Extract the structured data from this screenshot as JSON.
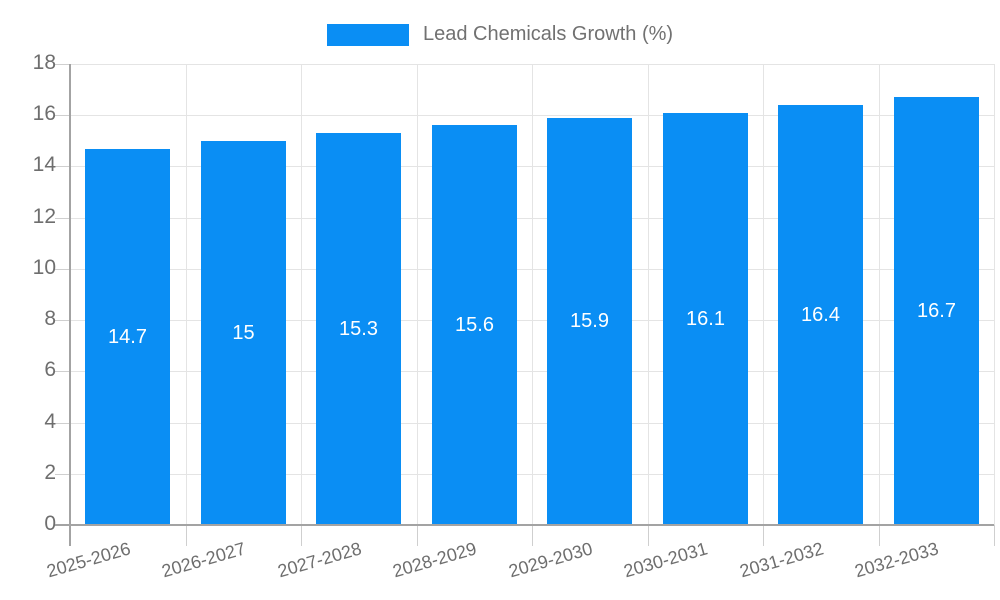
{
  "page": {
    "background": "#ffffff"
  },
  "legend": {
    "label": "Lead Chemicals Growth (%)",
    "swatch_color": "#0a8ef4"
  },
  "chart_data": {
    "type": "bar",
    "title": "",
    "xlabel": "",
    "ylabel": "",
    "categories": [
      "2025-2026",
      "2026-2027",
      "2027-2028",
      "2028-2029",
      "2029-2030",
      "2030-2031",
      "2031-2032",
      "2032-2033"
    ],
    "series": [
      {
        "name": "Lead Chemicals Growth (%)",
        "values": [
          14.7,
          15,
          15.3,
          15.6,
          15.9,
          16.1,
          16.4,
          16.7
        ],
        "color": "#0a8ef4"
      }
    ],
    "bar_value_labels": [
      "14.7",
      "15",
      "15.3",
      "15.6",
      "15.9",
      "16.1",
      "16.4",
      "16.7"
    ],
    "ylim": [
      0,
      18
    ],
    "yticks": [
      0,
      2,
      4,
      6,
      8,
      10,
      12,
      14,
      16,
      18
    ],
    "grid": true,
    "legend_position": "top-center",
    "value_label_position": "inside-center",
    "value_label_color": "#ffffff"
  },
  "colors": {
    "bar": "#0a8ef4",
    "gridline": "#e4e4e4",
    "axis_line": "#a3a3a3",
    "tick": "#cfcfcf",
    "axis_text": "#6e6e6e",
    "legend_text": "#717171"
  }
}
